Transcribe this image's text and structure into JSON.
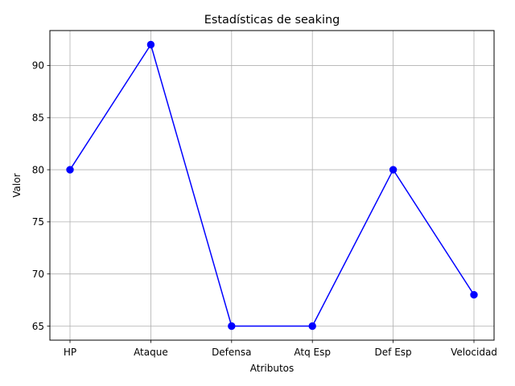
{
  "chart_data": {
    "type": "line",
    "title": "Estadísticas de seaking",
    "xlabel": "Atributos",
    "ylabel": "Valor",
    "categories": [
      "HP",
      "Ataque",
      "Defensa",
      "Atq Esp",
      "Def Esp",
      "Velocidad"
    ],
    "series": [
      {
        "values": [
          80,
          92,
          65,
          65,
          80,
          68
        ],
        "color": "#0000ff",
        "marker": "circle"
      }
    ],
    "ylim": [
      63.65,
      93.35
    ],
    "yticks": [
      65,
      70,
      75,
      80,
      85,
      90
    ],
    "grid": true,
    "grid_color": "#b0b0b0"
  }
}
